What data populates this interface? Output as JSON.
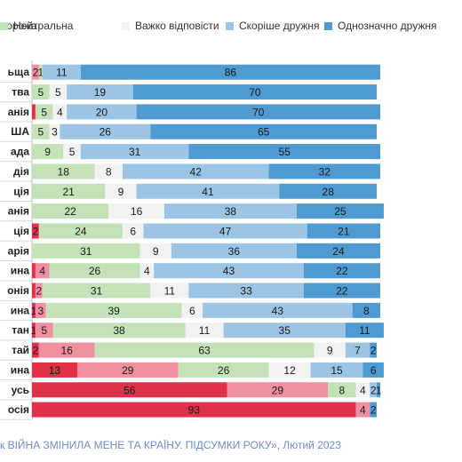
{
  "chart_data": {
    "type": "bar",
    "stacked": true,
    "orientation": "horizontal",
    "legend_position": "top",
    "xlim": [
      0,
      100
    ],
    "categories": [
      "ьща",
      "тва",
      "анія",
      "ША",
      "ада",
      "дія",
      "ція",
      "анія",
      "ція",
      "арія",
      "ина",
      "онія",
      "ина",
      "тан",
      "тай",
      "ина",
      "усь",
      "осія"
    ],
    "series": [
      {
        "name": "ворожа",
        "color": "#e0314a",
        "values": [
          0,
          0,
          1,
          0,
          0,
          0,
          0,
          0,
          2,
          0,
          1,
          1,
          1,
          1,
          2,
          13,
          56,
          93
        ]
      },
      {
        "name": "",
        "color": "#ef8f9f",
        "values": [
          2,
          0,
          0,
          0,
          0,
          0,
          0,
          0,
          0,
          0,
          4,
          2,
          3,
          5,
          16,
          29,
          29,
          4
        ]
      },
      {
        "name": "Нейтральна",
        "color": "#c3e2b8",
        "values": [
          1,
          5,
          5,
          5,
          9,
          18,
          21,
          22,
          24,
          31,
          26,
          31,
          39,
          38,
          63,
          26,
          8,
          0
        ]
      },
      {
        "name": "Важко відповісти",
        "color": "#f2f2f2",
        "values": [
          0,
          5,
          4,
          3,
          5,
          8,
          9,
          16,
          6,
          9,
          4,
          11,
          6,
          11,
          9,
          12,
          4,
          0
        ]
      },
      {
        "name": "Скоріше дружня",
        "color": "#9cc4e4",
        "values": [
          11,
          19,
          20,
          26,
          31,
          42,
          41,
          38,
          47,
          36,
          43,
          33,
          43,
          35,
          7,
          15,
          2,
          0
        ]
      },
      {
        "name": "Однозначно дружня",
        "color": "#4f9ad0",
        "values": [
          86,
          70,
          70,
          65,
          55,
          32,
          28,
          25,
          21,
          24,
          22,
          22,
          8,
          11,
          2,
          6,
          1,
          2
        ]
      }
    ],
    "labels": [
      [
        "",
        "2",
        "1",
        "",
        "11",
        "86"
      ],
      [
        "",
        "",
        "5",
        "5",
        "19",
        "70"
      ],
      [
        "",
        "",
        "5",
        "4",
        "20",
        "70"
      ],
      [
        "",
        "",
        "5",
        "3",
        "26",
        "65"
      ],
      [
        "",
        "",
        "9",
        "5",
        "31",
        "55"
      ],
      [
        "",
        "",
        "18",
        "8",
        "42",
        "32"
      ],
      [
        "",
        "",
        "21",
        "9",
        "41",
        "28"
      ],
      [
        "",
        "",
        "22",
        "16",
        "38",
        "25"
      ],
      [
        "2",
        "",
        "24",
        "6",
        "47",
        "21"
      ],
      [
        "",
        "",
        "31",
        "9",
        "36",
        "24"
      ],
      [
        "",
        "4",
        "26",
        "4",
        "43",
        "22"
      ],
      [
        "",
        "2",
        "31",
        "11",
        "33",
        "22"
      ],
      [
        "1",
        "3",
        "39",
        "6",
        "43",
        "8"
      ],
      [
        "1",
        "5",
        "38",
        "11",
        "35",
        "11"
      ],
      [
        "2",
        "16",
        "63",
        "9",
        "7",
        "2"
      ],
      [
        "13",
        "29",
        "26",
        "12",
        "15",
        "6"
      ],
      [
        "56",
        "29",
        "8",
        "4",
        "2",
        "1"
      ],
      [
        "93",
        "4",
        "",
        "",
        "",
        "2"
      ]
    ]
  },
  "source": "к ВІЙНА ЗМІНИЛА МЕНЕ ТА КРАЇНУ. ПІДСУМКИ РОКУ», Лютий 2023"
}
